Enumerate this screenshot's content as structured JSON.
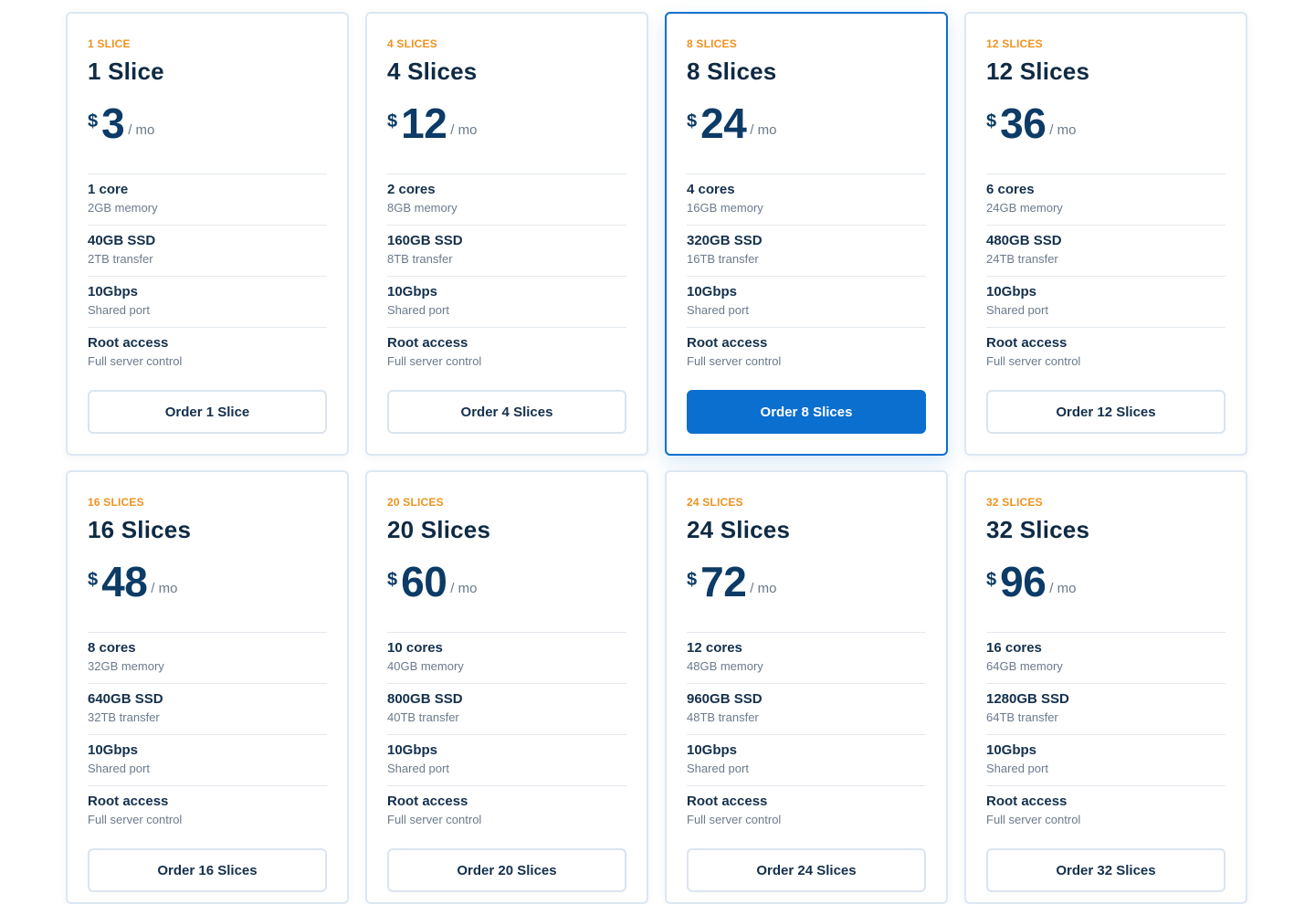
{
  "plans": [
    {
      "badge": "1 SLICE",
      "title": "1 Slice",
      "currency": "$",
      "price": "3",
      "period": "/ mo",
      "specs": [
        {
          "main": "1 core",
          "sub": "2GB memory"
        },
        {
          "main": "40GB SSD",
          "sub": "2TB transfer"
        },
        {
          "main": "10Gbps",
          "sub": "Shared port"
        },
        {
          "main": "Root access",
          "sub": "Full server control"
        }
      ],
      "button": "Order 1 Slice"
    },
    {
      "badge": "4 SLICES",
      "title": "4 Slices",
      "currency": "$",
      "price": "12",
      "period": "/ mo",
      "specs": [
        {
          "main": "2 cores",
          "sub": "8GB memory"
        },
        {
          "main": "160GB SSD",
          "sub": "8TB transfer"
        },
        {
          "main": "10Gbps",
          "sub": "Shared port"
        },
        {
          "main": "Root access",
          "sub": "Full server control"
        }
      ],
      "button": "Order 4 Slices"
    },
    {
      "badge": "8 SLICES",
      "title": "8 Slices",
      "currency": "$",
      "price": "24",
      "period": "/ mo",
      "specs": [
        {
          "main": "4 cores",
          "sub": "16GB memory"
        },
        {
          "main": "320GB SSD",
          "sub": "16TB transfer"
        },
        {
          "main": "10Gbps",
          "sub": "Shared port"
        },
        {
          "main": "Root access",
          "sub": "Full server control"
        }
      ],
      "button": "Order 8 Slices"
    },
    {
      "badge": "12 SLICES",
      "title": "12 Slices",
      "currency": "$",
      "price": "36",
      "period": "/ mo",
      "specs": [
        {
          "main": "6 cores",
          "sub": "24GB memory"
        },
        {
          "main": "480GB SSD",
          "sub": "24TB transfer"
        },
        {
          "main": "10Gbps",
          "sub": "Shared port"
        },
        {
          "main": "Root access",
          "sub": "Full server control"
        }
      ],
      "button": "Order 12 Slices"
    },
    {
      "badge": "16 SLICES",
      "title": "16 Slices",
      "currency": "$",
      "price": "48",
      "period": "/ mo",
      "specs": [
        {
          "main": "8 cores",
          "sub": "32GB memory"
        },
        {
          "main": "640GB SSD",
          "sub": "32TB transfer"
        },
        {
          "main": "10Gbps",
          "sub": "Shared port"
        },
        {
          "main": "Root access",
          "sub": "Full server control"
        }
      ],
      "button": "Order 16 Slices"
    },
    {
      "badge": "20 SLICES",
      "title": "20 Slices",
      "currency": "$",
      "price": "60",
      "period": "/ mo",
      "specs": [
        {
          "main": "10 cores",
          "sub": "40GB memory"
        },
        {
          "main": "800GB SSD",
          "sub": "40TB transfer"
        },
        {
          "main": "10Gbps",
          "sub": "Shared port"
        },
        {
          "main": "Root access",
          "sub": "Full server control"
        }
      ],
      "button": "Order 20 Slices"
    },
    {
      "badge": "24 SLICES",
      "title": "24 Slices",
      "currency": "$",
      "price": "72",
      "period": "/ mo",
      "specs": [
        {
          "main": "12 cores",
          "sub": "48GB memory"
        },
        {
          "main": "960GB SSD",
          "sub": "48TB transfer"
        },
        {
          "main": "10Gbps",
          "sub": "Shared port"
        },
        {
          "main": "Root access",
          "sub": "Full server control"
        }
      ],
      "button": "Order 24 Slices"
    },
    {
      "badge": "32 SLICES",
      "title": "32 Slices",
      "currency": "$",
      "price": "96",
      "period": "/ mo",
      "specs": [
        {
          "main": "16 cores",
          "sub": "64GB memory"
        },
        {
          "main": "1280GB SSD",
          "sub": "64TB transfer"
        },
        {
          "main": "10Gbps",
          "sub": "Shared port"
        },
        {
          "main": "Root access",
          "sub": "Full server control"
        }
      ],
      "button": "Order 32 Slices"
    }
  ],
  "featured_plan": "8 Slices",
  "colors": {
    "accent": "#0b6fd0",
    "badge": "#f0921e",
    "heading": "#0f2a44",
    "muted": "#6b7a8c",
    "border": "#dde7f3"
  }
}
